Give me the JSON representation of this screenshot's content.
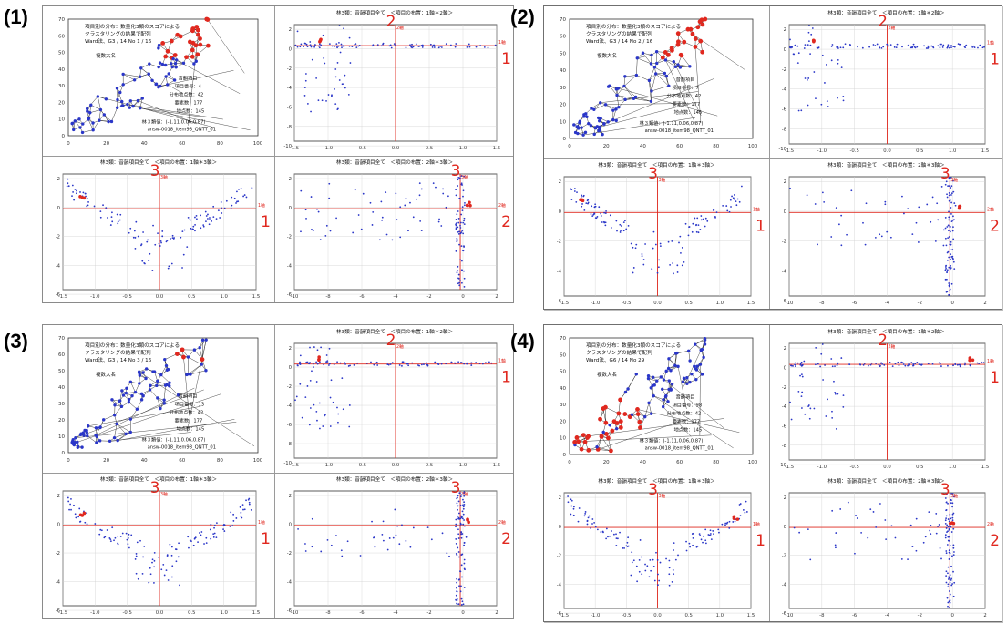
{
  "panels": [
    {
      "label": "(1)",
      "info": "項目番号：4",
      "dist_title": "項目別の分布：数量化3類のスコアによる",
      "dist_subtitle": "クラスタリングの結果で配列",
      "dist_sub2": "Ward法、G3 / 14    No  1 / 16",
      "highlight": "tl"
    },
    {
      "label": "(2)",
      "info": "項目番号：7",
      "dist_title": "項目別の分布：数量化3類のスコアによる",
      "dist_subtitle": "クラスタリングの結果で配列",
      "dist_sub2": "Ward法、G3 / 14    No  2 / 16",
      "highlight": "tr"
    },
    {
      "label": "(3)",
      "info": "項目番号：13",
      "dist_title": "項目別の分布：数量化3類のスコアによる",
      "dist_subtitle": "クラスタリングの結果で配列",
      "dist_sub2": "Ward法、G3 / 14    No  3 / 16",
      "highlight": "mid"
    },
    {
      "label": "(4)",
      "info": "項目番号：98",
      "dist_title": "項目別の分布：数量化3類のスコアによる",
      "dist_subtitle": "クラスタリングの結果で配列",
      "dist_sub2": "Ward法、G6 / 14    No  29",
      "highlight": "bl"
    }
  ],
  "scatter_titles": {
    "ax12": "林3類：音韻項目全て　＜項目の布置：1軸＊2軸＞",
    "ax13": "林3類：音韻項目全て　＜項目の布置：1軸＊3軸＞",
    "ax23": "林3類：音韻項目全て　＜項目の布置：2軸＊3軸＞"
  },
  "axis_markers": {
    "one": "1",
    "two": "2",
    "three": "3"
  },
  "colors": {
    "red": "#e0281f",
    "blue": "#2a36c8",
    "black": "#111111"
  },
  "chart_data": {
    "type": "scatter",
    "description_of_layout": "4 panels, each with a triangulated distribution map and three correspondence-analysis scatter plots (axes 1-2, 1-3, 2-3)",
    "tick_labels_12_x": [
      "-1.5",
      "-1.0",
      "-0.5",
      "0.0",
      "0.5",
      "1.0",
      "1.5"
    ],
    "tick_labels_12_y": [
      "2",
      "0",
      "-2",
      "-4",
      "-6",
      "-8",
      "-10"
    ],
    "tick_labels_13_x": [
      "-1.5",
      "-1.0",
      "-0.5",
      "0.0",
      "0.5",
      "1.0",
      "1.5"
    ],
    "tick_labels_13_y": [
      "2",
      "0",
      "-2",
      "-4",
      "-6"
    ],
    "tick_labels_23_x": [
      "-10",
      "-8",
      "-6",
      "-4",
      "-2",
      "0",
      "2"
    ],
    "tick_labels_23_y": [
      "2",
      "0",
      "-2",
      "-4",
      "-6"
    ],
    "map_ticks_x": [
      "0",
      "20",
      "40",
      "60",
      "80",
      "100"
    ],
    "map_ticks_y": [
      "70",
      "60",
      "50",
      "40",
      "30",
      "20",
      "10",
      "0"
    ]
  }
}
